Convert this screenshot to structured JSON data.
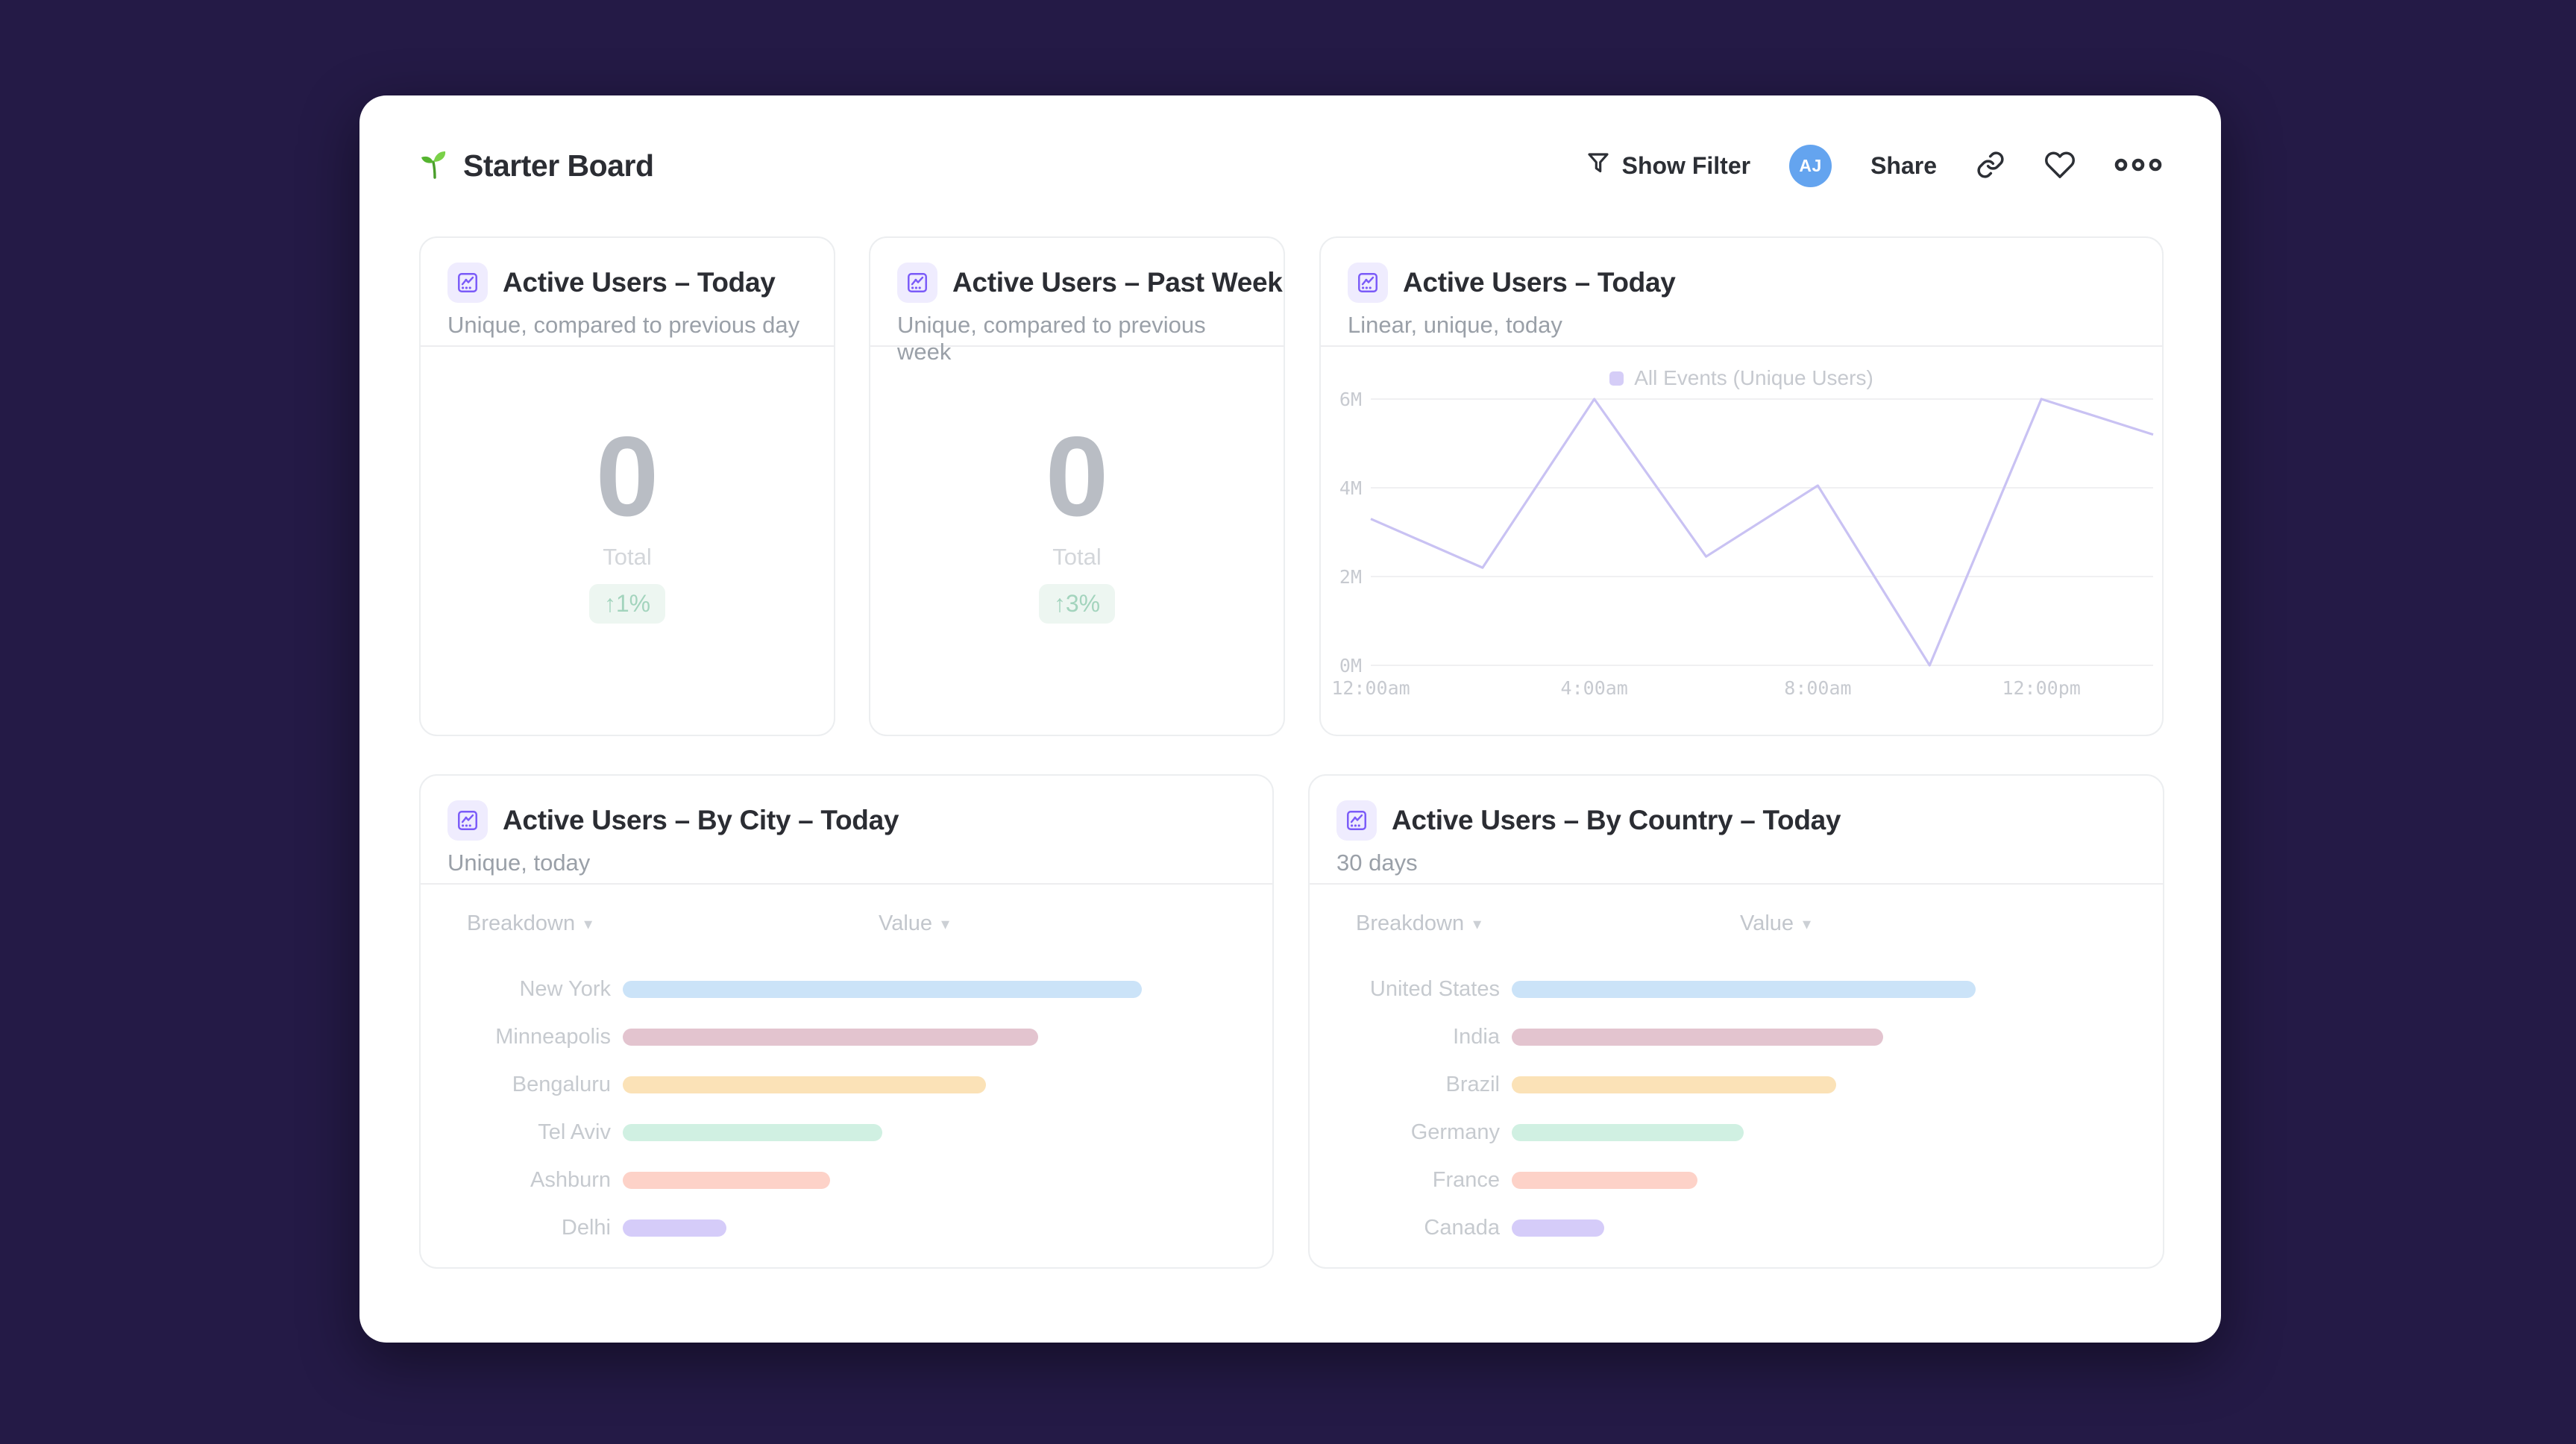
{
  "page": {
    "background": "#241a46"
  },
  "header": {
    "title": "Starter Board",
    "actions": {
      "show_filter_label": "Show Filter",
      "avatar_initials": "AJ",
      "avatar_color": "#64a4ef",
      "share_label": "Share"
    }
  },
  "cards": {
    "active_today": {
      "title": "Active Users – Today",
      "subtitle": "Unique, compared to previous day",
      "value": "0",
      "value_label": "Total",
      "change_badge": "↑1%"
    },
    "active_past_week": {
      "title": "Active Users – Past Week",
      "subtitle": "Unique, compared to previous week",
      "value": "0",
      "value_label": "Total",
      "change_badge": "↑3%"
    },
    "active_today_chart": {
      "title": "Active Users – Today",
      "subtitle": "Linear, unique, today",
      "legend": "All Events (Unique Users)"
    },
    "by_city": {
      "title": "Active Users – By City – Today",
      "subtitle": "Unique, today",
      "col_breakdown": "Breakdown",
      "col_value": "Value"
    },
    "by_country": {
      "title": "Active Users – By Country – Today",
      "subtitle": "30 days",
      "col_breakdown": "Breakdown",
      "col_value": "Value"
    }
  },
  "chart_data": [
    {
      "type": "line",
      "title": "Active Users – Today",
      "legend_entries": [
        "All Events (Unique Users)"
      ],
      "legend_position": "top-center",
      "x_hours": [
        0,
        2,
        4,
        6,
        8,
        10,
        12,
        14
      ],
      "series": [
        {
          "name": "All Events (Unique Users)",
          "values_millions": [
            3.3,
            2.2,
            6.0,
            2.45,
            4.05,
            0,
            6.0,
            5.2
          ]
        }
      ],
      "x_tick_labels": [
        "12:00am",
        "4:00am",
        "8:00am",
        "12:00pm"
      ],
      "y_tick_labels": [
        "0M",
        "2M",
        "4M",
        "6M"
      ],
      "ylim_millions": [
        0,
        6
      ],
      "grid": "horizontal",
      "line_color": "#c9c2f3",
      "grid_color": "#f0f0f2"
    },
    {
      "type": "bar",
      "title": "Active Users – By City – Today",
      "orientation": "horizontal",
      "categories": [
        "New York",
        "Minneapolis",
        "Bengaluru",
        "Tel Aviv",
        "Ashburn",
        "Delhi"
      ],
      "values_relative_pct": [
        100,
        80,
        70,
        50,
        40,
        20
      ],
      "bar_colors": [
        "#cbe3f8",
        "#e3c4cf",
        "#fbe2b7",
        "#d0f0e2",
        "#fdd2c8",
        "#d5ccf9"
      ],
      "value_labels_shown": false
    },
    {
      "type": "bar",
      "title": "Active Users – By Country – Today",
      "orientation": "horizontal",
      "categories": [
        "United States",
        "India",
        "Brazil",
        "Germany",
        "France",
        "Canada"
      ],
      "values_relative_pct": [
        100,
        80,
        70,
        50,
        40,
        20
      ],
      "bar_colors": [
        "#cbe3f8",
        "#e3c4cf",
        "#fbe2b7",
        "#d0f0e2",
        "#fdd2c8",
        "#d5ccf9"
      ],
      "value_labels_shown": false
    }
  ]
}
